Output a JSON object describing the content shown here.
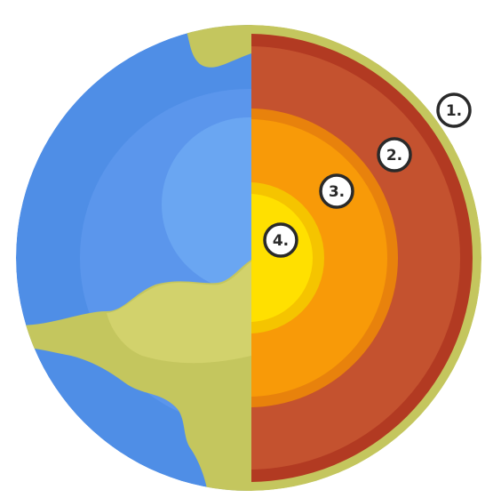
{
  "diagram": {
    "labels": [
      "1.",
      "2.",
      "3.",
      "4."
    ],
    "colors": {
      "ocean": "#4f8ee6",
      "ocean_mid": "#5b96ec",
      "ocean_inner": "#6aa6f2",
      "land": "#c4c65e",
      "land_light": "#d2d26c",
      "crust": "#c4c65e",
      "mantle_outer": "#b23a22",
      "mantle_inner": "#c4522f",
      "outer_core_outer": "#e8820c",
      "outer_core_inner": "#f89a08",
      "inner_core_outer": "#f5c400",
      "inner_core_inner": "#ffe000",
      "label_border": "#2a2a2a",
      "label_fill": "#ffffff"
    }
  }
}
